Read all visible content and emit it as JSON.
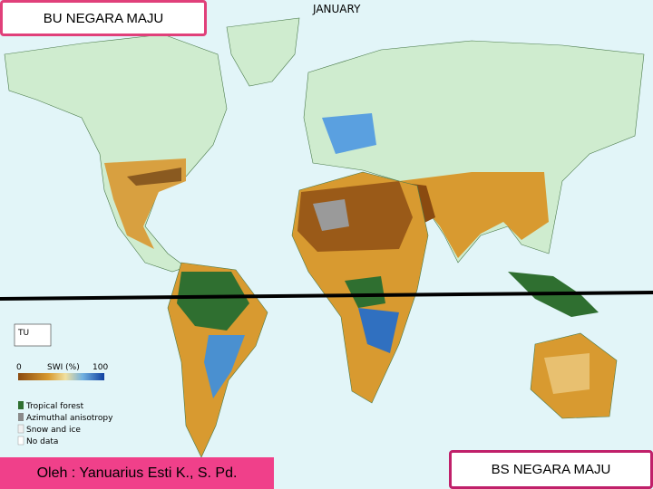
{
  "header": {
    "title": "BU NEGARA MAJU",
    "month": "JANUARY"
  },
  "legend": {
    "logo": "TU",
    "scale_min": "0",
    "scale_label": "SWI (%)",
    "scale_max": "100",
    "items": [
      "Tropical forest",
      "Azimuthal anisotropy",
      "Snow and ice",
      "No data"
    ]
  },
  "footer": {
    "author": "Oleh : Yanuarius Esti K., S. Pd.",
    "label": "BS NEGARA MAJU"
  }
}
